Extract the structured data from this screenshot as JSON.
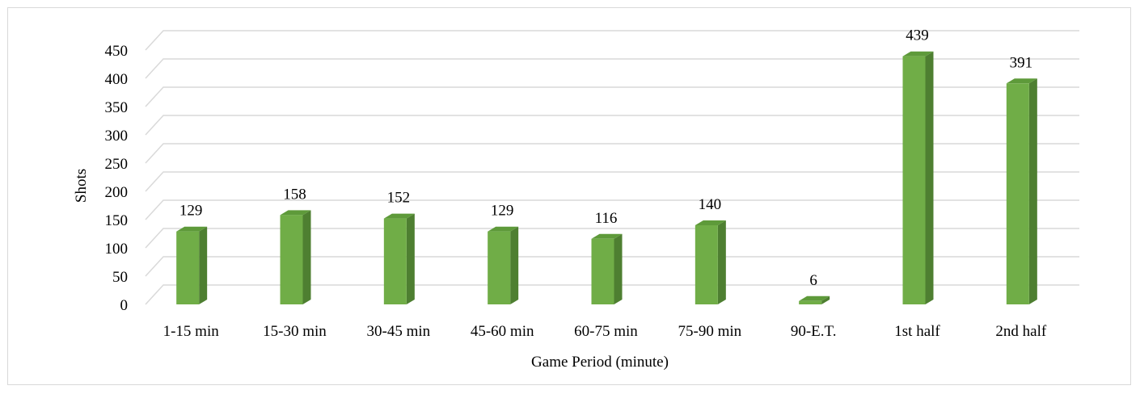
{
  "chart_data": {
    "type": "bar",
    "title": "",
    "xlabel": "Game Period (minute)",
    "ylabel": "Shots",
    "categories": [
      "1-15 min",
      "15-30 min",
      "30-45 min",
      "45-60 min",
      "60-75 min",
      "75-90 min",
      "90-E.T.",
      "1st half",
      "2nd half"
    ],
    "values": [
      129,
      158,
      152,
      129,
      116,
      140,
      6,
      439,
      391
    ],
    "ylim": [
      0,
      450
    ],
    "yticks": [
      0,
      50,
      100,
      150,
      200,
      250,
      300,
      350,
      400,
      450
    ],
    "grid": true,
    "legend": "none",
    "colors": {
      "bar_front": "#70ad47",
      "bar_side": "#4e7f31",
      "bar_top": "#5e9a3a",
      "grid": "#d9d9d9"
    }
  }
}
